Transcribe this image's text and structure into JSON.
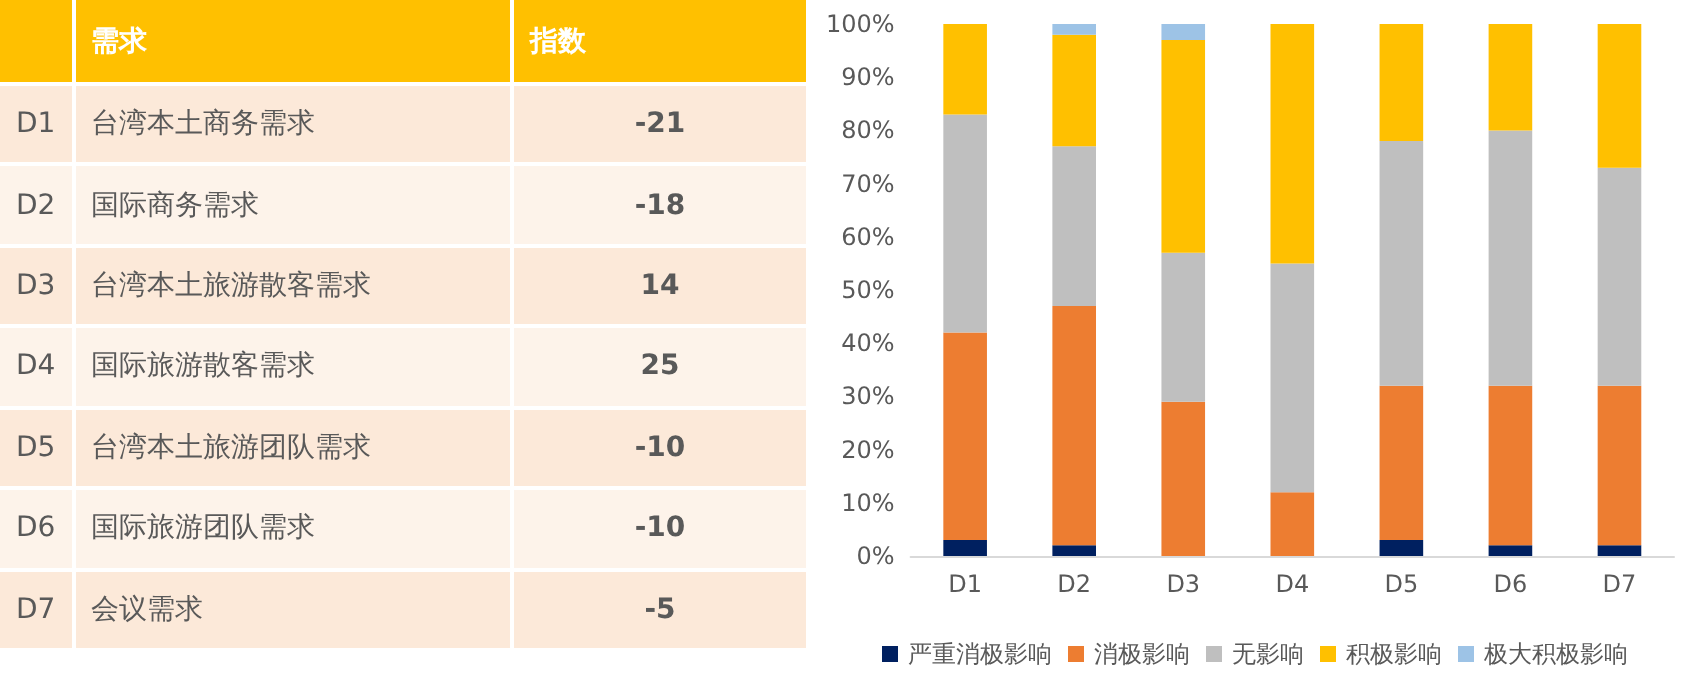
{
  "chart_data": [
    {
      "type": "other",
      "xlabel": "需求",
      "ylabel": "指数",
      "categories": [
        "D1",
        "D2",
        "D3",
        "D4",
        "D5",
        "D6",
        "D7"
      ],
      "annotations": [
        "台湾本土商务需求",
        "国际商务需求",
        "台湾本土旅游散客需求",
        "国际旅游散客需求",
        "台湾本土旅游团队需求",
        "国际旅游团队需求",
        "会议需求"
      ],
      "values": [
        -21,
        -18,
        14,
        25,
        -10,
        -10,
        -5
      ],
      "data_labels": true
    },
    {
      "type": "bar",
      "stacked": true,
      "categories": [
        "D1",
        "D2",
        "D3",
        "D4",
        "D5",
        "D6",
        "D7"
      ],
      "ylim": [
        0,
        100
      ],
      "yticks": [
        {
          "value": 0,
          "label": "0%"
        },
        {
          "value": 10,
          "label": "10%"
        },
        {
          "value": 20,
          "label": "20%"
        },
        {
          "value": 30,
          "label": "30%"
        },
        {
          "value": 40,
          "label": "40%"
        },
        {
          "value": 50,
          "label": "50%"
        },
        {
          "value": 60,
          "label": "60%"
        },
        {
          "value": 70,
          "label": "70%"
        },
        {
          "value": 80,
          "label": "80%"
        },
        {
          "value": 90,
          "label": "90%"
        },
        {
          "value": 100,
          "label": "100%"
        }
      ],
      "legend": "bottom",
      "series": [
        {
          "name": "严重消极影响",
          "color": "#002060",
          "values": [
            3,
            2,
            0,
            0,
            3,
            2,
            2
          ]
        },
        {
          "name": "消极影响",
          "color": "#ed7d31",
          "values": [
            39,
            45,
            29,
            12,
            29,
            30,
            30
          ]
        },
        {
          "name": "无影响",
          "color": "#bfbfbf",
          "values": [
            41,
            30,
            28,
            43,
            46,
            48,
            41
          ]
        },
        {
          "name": "积极影响",
          "color": "#ffc000",
          "values": [
            17,
            21,
            40,
            45,
            22,
            20,
            27
          ]
        },
        {
          "name": "极大积极影响",
          "color": "#9dc3e6",
          "values": [
            0,
            2,
            3,
            0,
            0,
            0,
            0
          ]
        }
      ]
    }
  ]
}
